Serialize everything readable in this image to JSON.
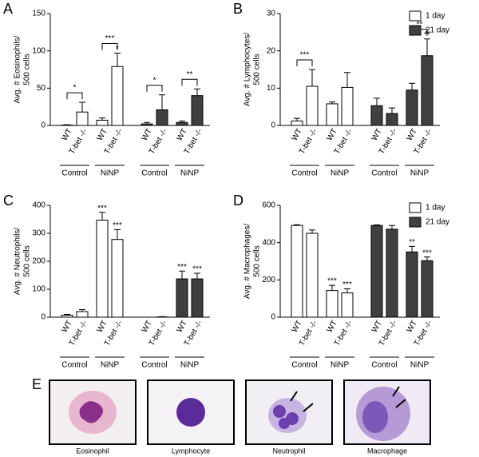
{
  "chart_data": [
    {
      "type": "bar",
      "panel": "A",
      "y_label": [
        "Avg. # Eosinophils/",
        "500 cells"
      ],
      "categories": [
        "WT",
        "T-bet -/-",
        "WT",
        "T-bet -/-"
      ],
      "groups": [
        "Control",
        "NiNP"
      ],
      "ylim": [
        0,
        150
      ],
      "yticks": [
        0,
        50,
        100,
        150
      ],
      "series": [
        {
          "color": "#ffffff",
          "values": [
            0.5,
            18,
            7,
            79
          ],
          "errors": [
            0.5,
            13,
            3,
            18
          ],
          "star_labels": [
            null,
            null,
            null,
            "*"
          ],
          "bracket_labels": [
            "*",
            "***"
          ]
        },
        {
          "color": "#404040",
          "values": [
            2,
            21,
            4,
            40
          ],
          "errors": [
            2,
            20,
            2,
            9
          ],
          "star_labels": [
            null,
            null,
            null,
            null
          ],
          "bracket_labels": [
            "*",
            "**"
          ]
        }
      ]
    },
    {
      "type": "bar",
      "panel": "B",
      "y_label": [
        "Avg. # Lymphocytes/",
        "500 cells"
      ],
      "categories": [
        "WT",
        "T-bet -/-",
        "WT",
        "T-bet -/-"
      ],
      "groups": [
        "Control",
        "NiNP"
      ],
      "ylim": [
        0,
        30
      ],
      "yticks": [
        0,
        10,
        20,
        30
      ],
      "legend": "upper right",
      "series": [
        {
          "name": "1 day",
          "color": "#ffffff",
          "values": [
            1.2,
            10.5,
            5.8,
            10.2
          ],
          "errors": [
            0.7,
            4.5,
            0.5,
            4
          ],
          "star_labels": [
            null,
            null,
            null,
            null
          ],
          "bracket_labels": [
            "***",
            null
          ]
        },
        {
          "name": "21 day",
          "color": "#404040",
          "values": [
            5.3,
            3.2,
            9.5,
            18.7
          ],
          "errors": [
            2,
            1.5,
            1.8,
            4.5
          ],
          "star_labels": [
            null,
            null,
            null,
            "**"
          ],
          "bracket_labels": [
            null,
            "**"
          ]
        }
      ]
    },
    {
      "type": "bar",
      "panel": "C",
      "y_label": [
        "Avg. # Neutrophils/",
        "500 cells"
      ],
      "categories": [
        "WT",
        "T-bet -/-",
        "WT",
        "T-bet -/-"
      ],
      "groups": [
        "Control",
        "NiNP"
      ],
      "ylim": [
        0,
        400
      ],
      "yticks": [
        0,
        100,
        200,
        300,
        400
      ],
      "series": [
        {
          "color": "#ffffff",
          "values": [
            7,
            20,
            347,
            278
          ],
          "errors": [
            3,
            7,
            28,
            35
          ],
          "star_labels": [
            null,
            null,
            "***",
            "***"
          ],
          "bracket_labels": [
            null,
            null
          ]
        },
        {
          "color": "#404040",
          "values": [
            0,
            1,
            137,
            137
          ],
          "errors": [
            0,
            1,
            28,
            20
          ],
          "star_labels": [
            null,
            null,
            "***",
            "***"
          ],
          "bracket_labels": [
            null,
            null
          ]
        }
      ]
    },
    {
      "type": "bar",
      "panel": "D",
      "y_label": [
        "Avg. # Macrophages/",
        "500 cells"
      ],
      "categories": [
        "WT",
        "T-bet -/-",
        "WT",
        "T-bet -/-"
      ],
      "groups": [
        "Control",
        "NiNP"
      ],
      "ylim": [
        0,
        600
      ],
      "yticks": [
        0,
        200,
        400,
        600
      ],
      "legend": "upper right",
      "series": [
        {
          "name": "1 day",
          "color": "#ffffff",
          "values": [
            492,
            450,
            143,
            130
          ],
          "errors": [
            4,
            18,
            28,
            22
          ],
          "star_labels": [
            null,
            null,
            "***",
            "***"
          ],
          "bracket_labels": [
            null,
            null
          ]
        },
        {
          "name": "21 day",
          "color": "#404040",
          "values": [
            492,
            472,
            350,
            303
          ],
          "errors": [
            3,
            20,
            30,
            20
          ],
          "star_labels": [
            null,
            null,
            "**",
            "***"
          ],
          "bracket_labels": [
            null,
            null
          ]
        }
      ]
    }
  ],
  "panel_e": {
    "letter": "E",
    "captions": [
      "Eosinophil",
      "Lymphocyte",
      "Neutrophil",
      "Macrophage"
    ]
  }
}
